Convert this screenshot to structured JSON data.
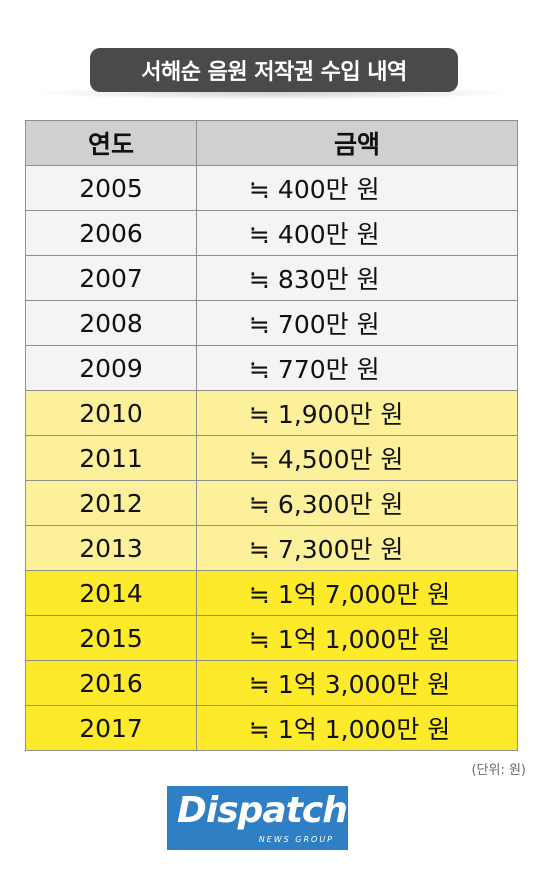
{
  "title": "서해순 음원 저작권 수입 내역",
  "table": {
    "headers": {
      "year": "연도",
      "amount": "금액"
    },
    "rows": [
      {
        "year": "2005",
        "amount": "≒ 400만 원",
        "tier": 0
      },
      {
        "year": "2006",
        "amount": "≒ 400만 원",
        "tier": 0
      },
      {
        "year": "2007",
        "amount": "≒ 830만 원",
        "tier": 0
      },
      {
        "year": "2008",
        "amount": "≒ 700만 원",
        "tier": 0
      },
      {
        "year": "2009",
        "amount": "≒ 770만 원",
        "tier": 0
      },
      {
        "year": "2010",
        "amount": "≒ 1,900만 원",
        "tier": 1
      },
      {
        "year": "2011",
        "amount": "≒ 4,500만 원",
        "tier": 1
      },
      {
        "year": "2012",
        "amount": "≒ 6,300만 원",
        "tier": 1
      },
      {
        "year": "2013",
        "amount": "≒ 7,300만 원",
        "tier": 1
      },
      {
        "year": "2014",
        "amount": "≒ 1억 7,000만 원",
        "tier": 2
      },
      {
        "year": "2015",
        "amount": "≒ 1억 1,000만 원",
        "tier": 2
      },
      {
        "year": "2016",
        "amount": "≒ 1억 3,000만 원",
        "tier": 2
      },
      {
        "year": "2017",
        "amount": "≒ 1억 1,000만 원",
        "tier": 2
      }
    ]
  },
  "unit_note": "(단위: 원)",
  "logo": {
    "main": "Dispatch",
    "sub": "NEWS GROUP"
  },
  "colors": {
    "header_bg": "#d0d0d0",
    "tier0_bg": "#f4f4f6",
    "tier1_bg": "#fdf09a",
    "tier2_bg": "#fdea2b",
    "title_bg": "#4a4a4a",
    "logo_bg": "#2f7fc4"
  }
}
